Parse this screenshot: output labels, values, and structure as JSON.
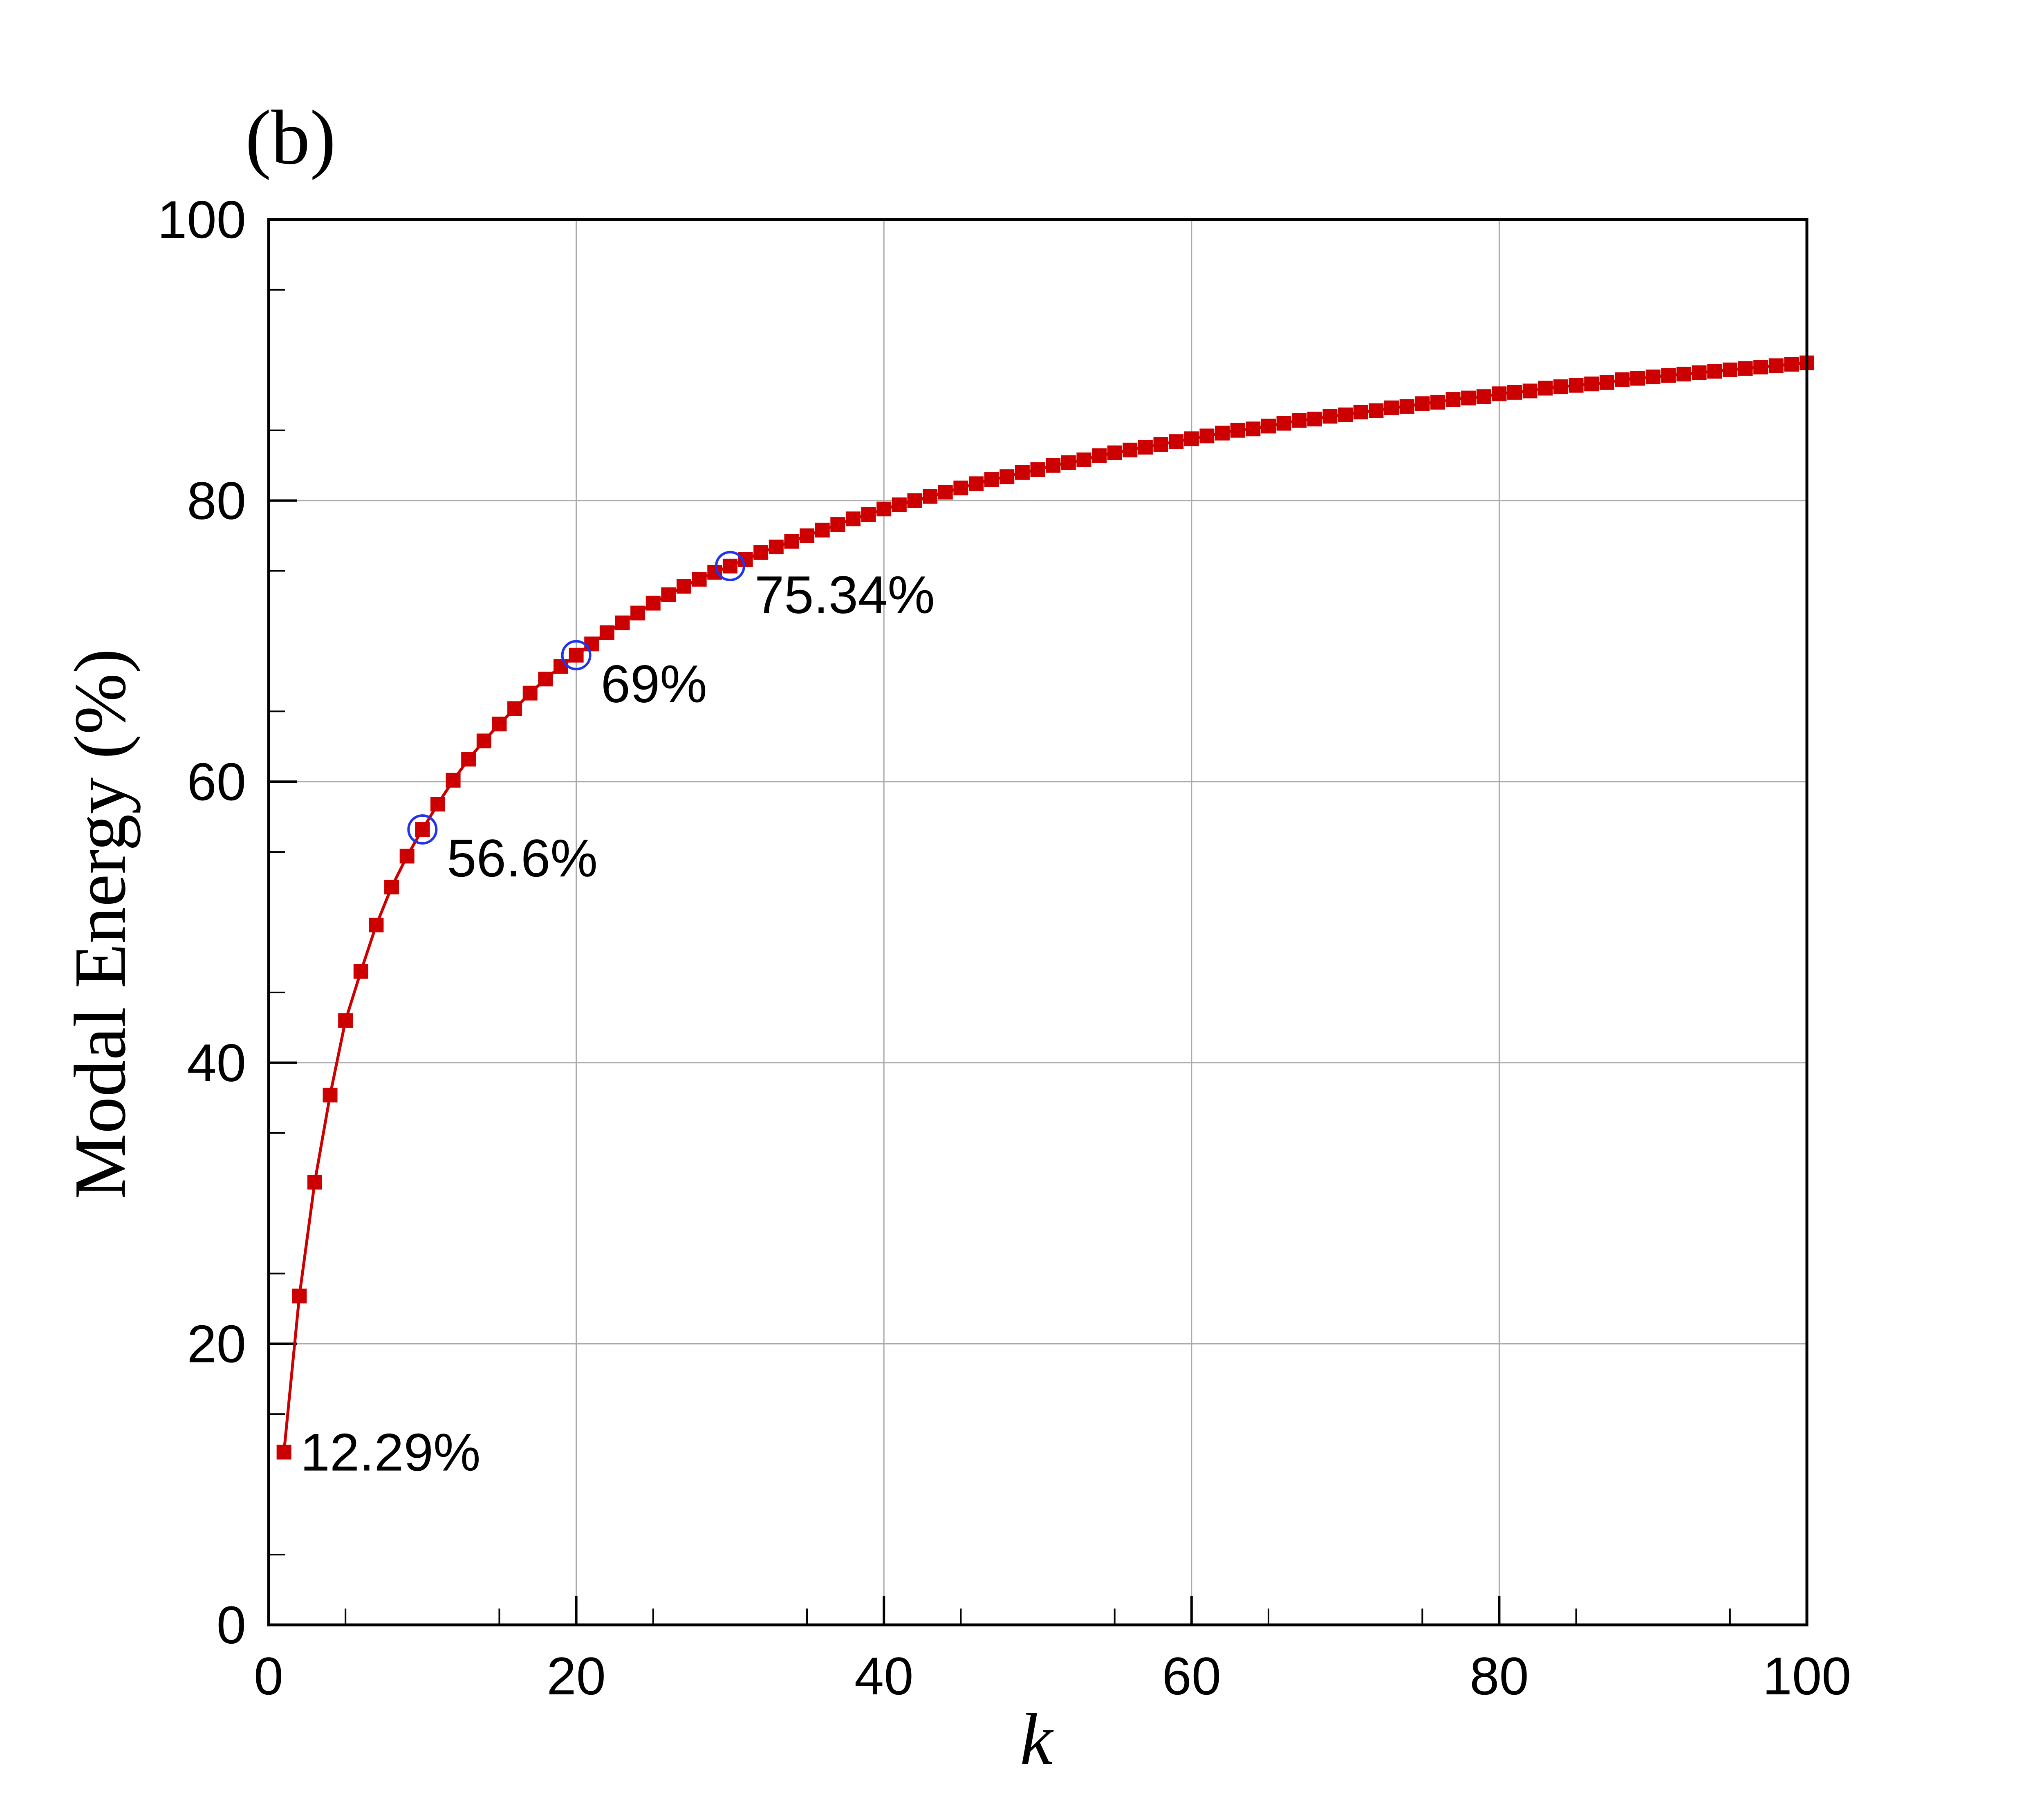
{
  "panel_label": "(b)",
  "chart_data": {
    "type": "line",
    "xlabel": "k",
    "ylabel": "Modal Energy (%)",
    "xlim": [
      0,
      100
    ],
    "ylim": [
      0,
      100
    ],
    "xticks": [
      "0",
      "20",
      "40",
      "60",
      "80",
      "100"
    ],
    "yticks": [
      "0",
      "20",
      "40",
      "60",
      "80",
      "100"
    ],
    "grid": true,
    "line_color": "#cc0000",
    "highlight_color": "#2233ee",
    "x": [
      1,
      2,
      3,
      4,
      5,
      6,
      7,
      8,
      9,
      10,
      11,
      12,
      13,
      14,
      15,
      16,
      17,
      18,
      19,
      20,
      21,
      22,
      23,
      24,
      25,
      26,
      27,
      28,
      29,
      30,
      31,
      32,
      33,
      34,
      35,
      36,
      37,
      38,
      39,
      40,
      41,
      42,
      43,
      44,
      45,
      46,
      47,
      48,
      49,
      50,
      51,
      52,
      53,
      54,
      55,
      56,
      57,
      58,
      59,
      60,
      61,
      62,
      63,
      64,
      65,
      66,
      67,
      68,
      69,
      70,
      71,
      72,
      73,
      74,
      75,
      76,
      77,
      78,
      79,
      80,
      81,
      82,
      83,
      84,
      85,
      86,
      87,
      88,
      89,
      90,
      91,
      92,
      93,
      94,
      95,
      96,
      97,
      98,
      99,
      100
    ],
    "y": [
      12.29,
      23.4,
      31.5,
      37.7,
      43.0,
      46.5,
      49.8,
      52.5,
      54.7,
      56.6,
      58.4,
      60.1,
      61.6,
      62.9,
      64.1,
      65.2,
      66.3,
      67.3,
      68.2,
      69.0,
      69.8,
      70.6,
      71.3,
      72.0,
      72.7,
      73.3,
      73.9,
      74.4,
      74.9,
      75.34,
      75.8,
      76.3,
      76.7,
      77.1,
      77.5,
      77.9,
      78.3,
      78.7,
      79.0,
      79.4,
      79.7,
      80.0,
      80.3,
      80.6,
      80.9,
      81.2,
      81.5,
      81.7,
      82.0,
      82.2,
      82.5,
      82.7,
      82.9,
      83.2,
      83.4,
      83.6,
      83.8,
      84.0,
      84.2,
      84.4,
      84.6,
      84.8,
      85.0,
      85.1,
      85.3,
      85.5,
      85.7,
      85.8,
      86.0,
      86.1,
      86.3,
      86.4,
      86.6,
      86.7,
      86.9,
      87.0,
      87.2,
      87.3,
      87.4,
      87.6,
      87.7,
      87.8,
      88.0,
      88.1,
      88.2,
      88.3,
      88.4,
      88.6,
      88.7,
      88.8,
      88.9,
      89.0,
      89.1,
      89.2,
      89.3,
      89.4,
      89.5,
      89.6,
      89.7,
      89.8
    ],
    "annotations": [
      {
        "x": 1,
        "y": 12.29,
        "text": "12.29%",
        "circled": false
      },
      {
        "x": 10,
        "y": 56.6,
        "text": "56.6%",
        "circled": true
      },
      {
        "x": 20,
        "y": 69.0,
        "text": "69%",
        "circled": true
      },
      {
        "x": 30,
        "y": 75.34,
        "text": "75.34%",
        "circled": true
      }
    ]
  }
}
